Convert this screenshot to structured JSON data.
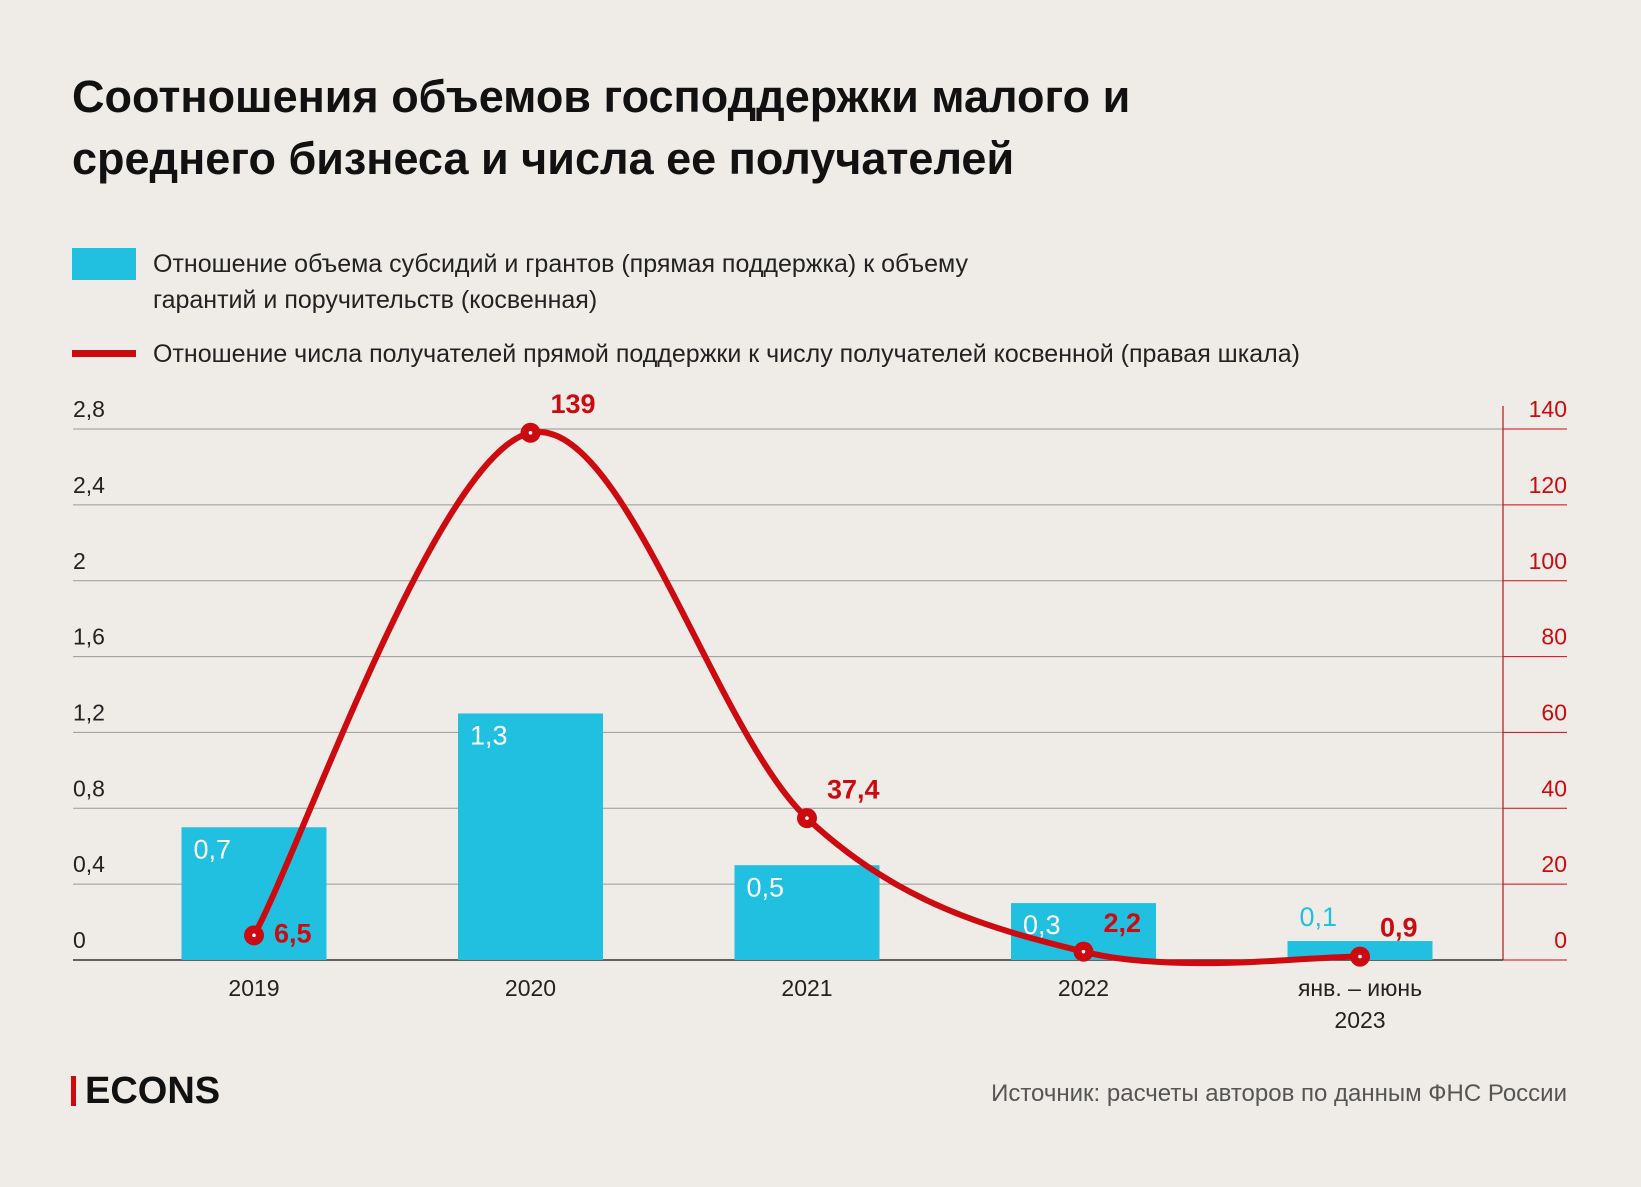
{
  "chart_data": {
    "type": "bar-line",
    "title": "Соотношения объемов господдержки малого и среднего бизнеса и числа ее получателей",
    "categories": [
      "2019",
      "2020",
      "2021",
      "2022",
      "янв. – июнь 2023"
    ],
    "series": [
      {
        "name": "Отношение объема субсидий и грантов (прямая поддержка) к объему гарантий и поручительств (косвенная)",
        "type": "bar",
        "color": "#22c0e0",
        "values": [
          0.7,
          1.3,
          0.5,
          0.3,
          0.1
        ],
        "value_labels": [
          "0,7",
          "1,3",
          "0,5",
          "0,3",
          "0,1"
        ]
      },
      {
        "name": "Отношение числа получателей прямой поддержки к числу получателей косвенной (правая шкала)",
        "type": "line",
        "axis": "y2",
        "color": "#cc0a0f",
        "values": [
          6.5,
          139,
          37.4,
          2.2,
          0.9
        ],
        "value_labels": [
          "6,5",
          "139",
          "37,4",
          "2,2",
          "0,9"
        ]
      }
    ],
    "ylim": [
      0,
      2.8
    ],
    "yticks": [
      0,
      {
        "value": 0.4,
        "label": "0,4"
      },
      {
        "value": 0.8,
        "label": "0,8"
      },
      {
        "value": 1.2,
        "label": "1,2"
      },
      {
        "value": 1.6,
        "label": "1,6"
      },
      2,
      {
        "value": 2.4,
        "label": "2,4"
      },
      {
        "value": 2.8,
        "label": "2,8"
      }
    ],
    "y2lim": [
      0,
      140
    ],
    "y2ticks": [
      0,
      20,
      40,
      60,
      80,
      100,
      120,
      140
    ],
    "grid": true,
    "logo": "ECONS",
    "source": "Источник: расчеты авторов по данным ФНС России"
  }
}
